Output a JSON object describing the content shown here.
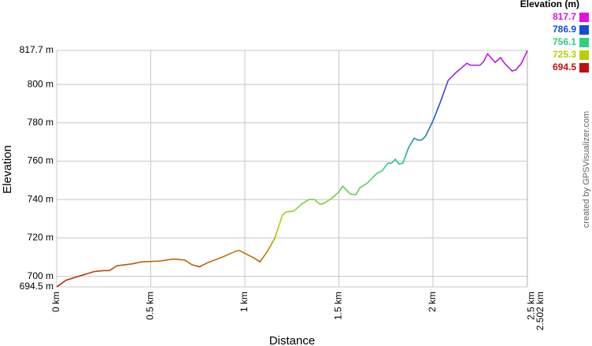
{
  "chart_data": {
    "type": "line",
    "y_label": "Elevation",
    "x_label": "Distance",
    "credit": "created by GPSVisualizer.com",
    "legend_title": "Elevation (m)",
    "color_scale": [
      {
        "value": 817.7,
        "color": "#e010e0"
      },
      {
        "value": 786.9,
        "color": "#1050d0"
      },
      {
        "value": 756.1,
        "color": "#30d080"
      },
      {
        "value": 725.3,
        "color": "#b8d000"
      },
      {
        "value": 694.5,
        "color": "#c01010"
      }
    ],
    "x": [
      0,
      0.05,
      0.1,
      0.2,
      0.25,
      0.28,
      0.32,
      0.4,
      0.45,
      0.55,
      0.62,
      0.68,
      0.72,
      0.76,
      0.8,
      0.88,
      0.95,
      0.97,
      1.0,
      1.05,
      1.08,
      1.12,
      1.16,
      1.2,
      1.22,
      1.26,
      1.3,
      1.34,
      1.37,
      1.4,
      1.42,
      1.46,
      1.5,
      1.52,
      1.56,
      1.59,
      1.61,
      1.65,
      1.7,
      1.73,
      1.76,
      1.78,
      1.8,
      1.82,
      1.84,
      1.87,
      1.9,
      1.92,
      1.94,
      1.96,
      2.0,
      2.04,
      2.08,
      2.12,
      2.18,
      2.2,
      2.25,
      2.27,
      2.29,
      2.33,
      2.36,
      2.38,
      2.42,
      2.44,
      2.47,
      2.502
    ],
    "values": [
      694.5,
      698,
      699.5,
      702.5,
      703,
      703,
      705.5,
      706.5,
      707.5,
      708,
      709,
      708.5,
      706,
      705,
      707,
      710,
      713,
      713.5,
      712,
      709.5,
      707.5,
      713,
      720,
      732,
      733.5,
      734,
      737.5,
      740,
      740,
      737.5,
      738,
      740.5,
      744,
      747,
      743,
      742.5,
      746,
      748.5,
      753.5,
      755,
      759,
      759,
      761,
      758.5,
      759,
      767,
      772,
      771,
      771,
      773,
      781,
      791,
      802,
      806,
      811,
      810,
      810,
      812,
      816,
      811.5,
      814,
      811,
      807,
      807.5,
      811,
      817.7
    ],
    "xlim": [
      0,
      2.502
    ],
    "ylim": [
      694.5,
      817.7
    ],
    "xticks": [
      {
        "value": 0,
        "label": "0 km"
      },
      {
        "value": 0.5,
        "label": "0.5 km"
      },
      {
        "value": 1,
        "label": "1 km"
      },
      {
        "value": 1.5,
        "label": "1.5 km"
      },
      {
        "value": 2,
        "label": "2 km"
      },
      {
        "value": 2.5,
        "label": "2.5 km"
      },
      {
        "value": 2.502,
        "label": "2.502 km"
      }
    ],
    "yticks": [
      {
        "value": 694.5,
        "label": "694.5 m"
      },
      {
        "value": 700,
        "label": "700 m"
      },
      {
        "value": 720,
        "label": "720 m"
      },
      {
        "value": 740,
        "label": "740 m"
      },
      {
        "value": 760,
        "label": "760 m"
      },
      {
        "value": 780,
        "label": "780 m"
      },
      {
        "value": 800,
        "label": "800 m"
      },
      {
        "value": 817.7,
        "label": "817.7 m"
      }
    ],
    "grid": true
  }
}
